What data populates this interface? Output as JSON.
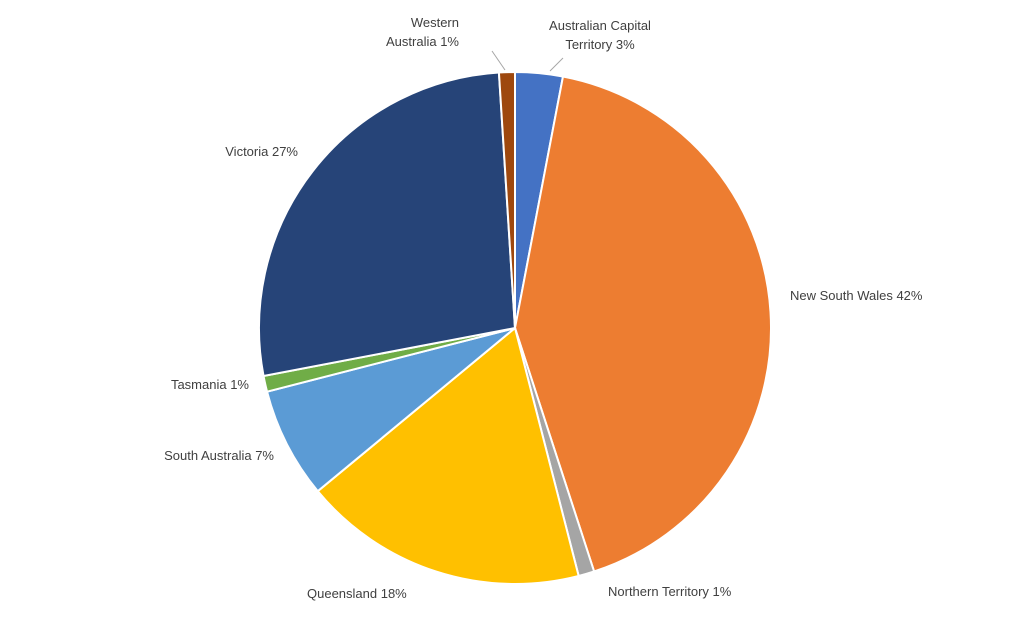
{
  "chart_data": {
    "type": "pie",
    "title": "",
    "slices": [
      {
        "name": "Australian Capital Territory",
        "label_lines": [
          "Australian Capital",
          "Territory 3%"
        ],
        "value": 3,
        "color": "#4472c4"
      },
      {
        "name": "New South Wales",
        "label_lines": [
          "New South Wales 42%"
        ],
        "value": 42,
        "color": "#ed7d31"
      },
      {
        "name": "Northern Territory",
        "label_lines": [
          "Northern Territory 1%"
        ],
        "value": 1,
        "color": "#a5a5a5"
      },
      {
        "name": "Queensland",
        "label_lines": [
          "Queensland 18%"
        ],
        "value": 18,
        "color": "#ffc000"
      },
      {
        "name": "South Australia",
        "label_lines": [
          "South Australia 7%"
        ],
        "value": 7,
        "color": "#5b9bd5"
      },
      {
        "name": "Tasmania",
        "label_lines": [
          "Tasmania 1%"
        ],
        "value": 1,
        "color": "#70ad47"
      },
      {
        "name": "Victoria",
        "label_lines": [
          "Victoria 27%"
        ],
        "value": 27,
        "color": "#264478"
      },
      {
        "name": "Western Australia",
        "label_lines": [
          "Western",
          "Australia 1%"
        ],
        "value": 1,
        "color": "#9e480e"
      }
    ],
    "legend": "none"
  }
}
